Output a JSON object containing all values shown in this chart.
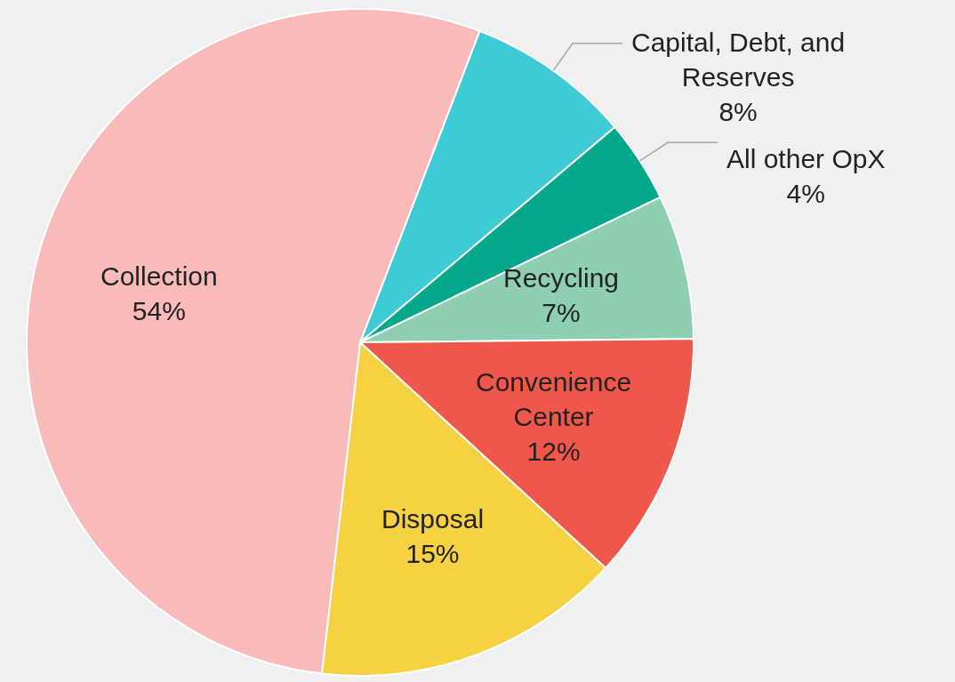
{
  "chart_data": {
    "type": "pie",
    "categories": [
      "Capital, Debt, and Reserves",
      "All other OpX",
      "Recycling",
      "Convenience Center",
      "Disposal",
      "Collection"
    ],
    "values": [
      8,
      4,
      7,
      12,
      15,
      54
    ],
    "colors": [
      "#3ecbd6",
      "#05a88a",
      "#8ecfb2",
      "#f0574b",
      "#f6d242",
      "#f8bbb9"
    ],
    "value_labels": [
      "8%",
      "4%",
      "7%",
      "12%",
      "15%",
      "54%"
    ]
  }
}
